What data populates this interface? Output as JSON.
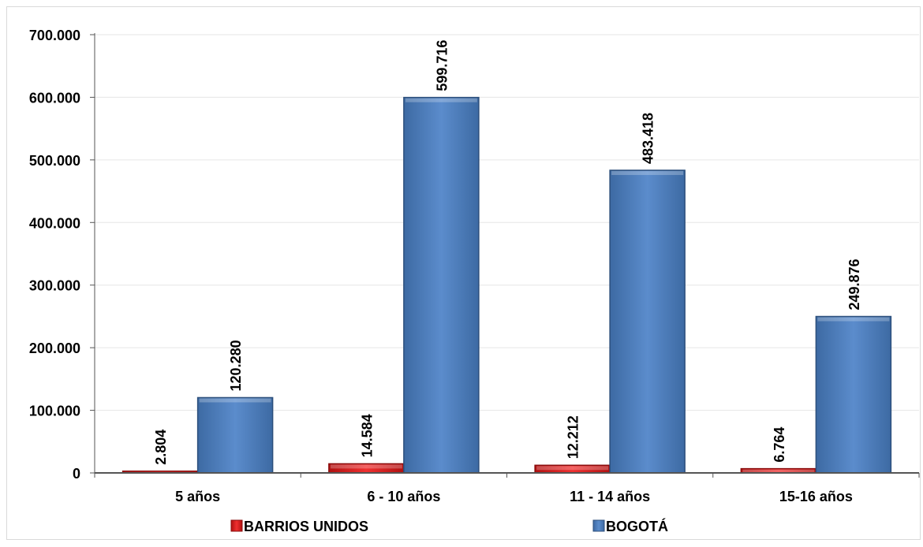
{
  "chart_data": {
    "type": "bar",
    "categories": [
      "5 años",
      "6 - 10 años",
      "11 - 14 años",
      "15-16 años"
    ],
    "series": [
      {
        "name": "BARRIOS UNIDOS",
        "values": [
          2804,
          14584,
          12212,
          6764
        ],
        "labels": [
          "2.804",
          "14.584",
          "12.212",
          "6.764"
        ],
        "color": "#e02020"
      },
      {
        "name": "BOGOTÁ",
        "values": [
          120280,
          599716,
          483418,
          249876
        ],
        "labels": [
          "120.280",
          "599.716",
          "483.418",
          "249.876"
        ],
        "color": "#4f81bd"
      }
    ],
    "ylim": [
      0,
      700000
    ],
    "yticks": [
      0,
      100000,
      200000,
      300000,
      400000,
      500000,
      600000,
      700000
    ],
    "ytick_labels": [
      "0",
      "100.000",
      "200.000",
      "300.000",
      "400.000",
      "500.000",
      "600.000",
      "700.000"
    ],
    "grid": true,
    "legend_position": "bottom"
  }
}
